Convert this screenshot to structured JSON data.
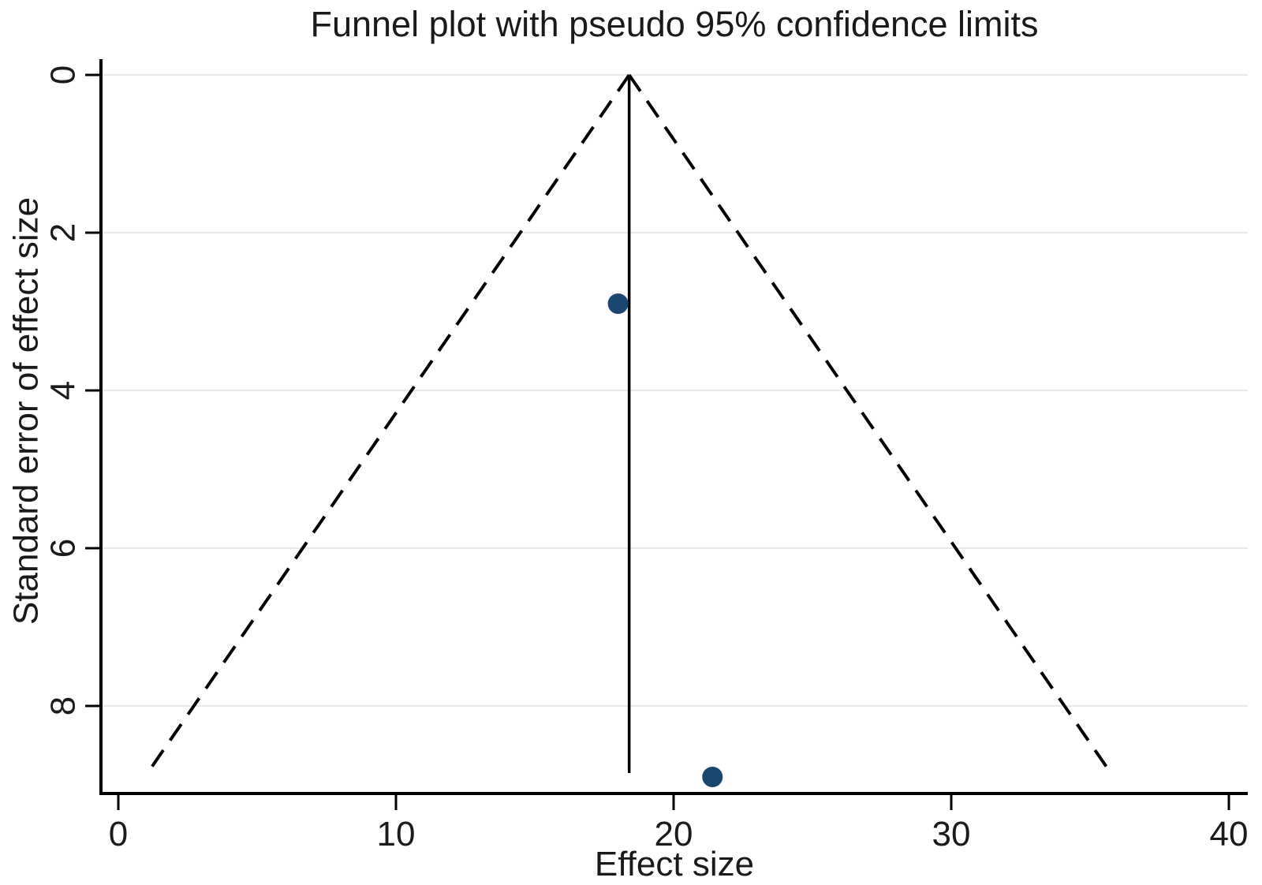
{
  "chart_data": {
    "type": "scatter",
    "subtype": "funnel-plot",
    "title": "Funnel plot with pseudo 95% confidence limits",
    "xlabel": "Effect size",
    "ylabel": "Standard error of effect size",
    "x_ticks": [
      0,
      10,
      20,
      30,
      40
    ],
    "y_ticks": [
      0,
      2,
      4,
      6,
      8
    ],
    "xlim": [
      -0.6,
      40.7
    ],
    "ylim": [
      9.1,
      0
    ],
    "y_axis_inverted": true,
    "grid": "horizontal",
    "legend": "none",
    "pooled_effect": 18.4,
    "confidence_z": 1.96,
    "funnel_se_max": 8.85,
    "points": [
      {
        "effect": 18.0,
        "se": 2.9
      },
      {
        "effect": 21.4,
        "se": 8.9
      }
    ],
    "point_radius": 13,
    "colors": {
      "point": "#1a476f",
      "line": "#000000",
      "grid": "#e9e9e9",
      "text": "#1a1a1a",
      "background": "#ffffff"
    }
  }
}
